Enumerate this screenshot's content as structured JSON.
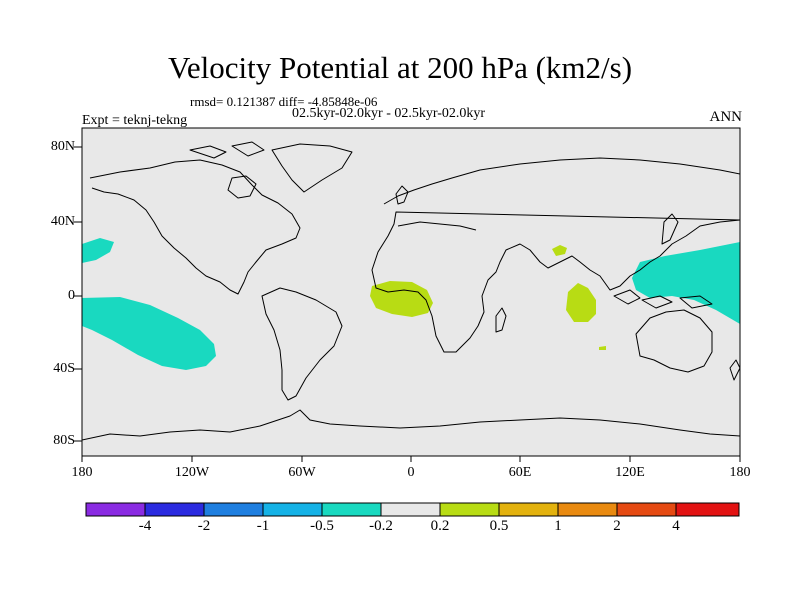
{
  "title": "Velocity Potential at 200 hPa (km2/s)",
  "stats": "rmsd= 0.121387 diff= -4.85848e-06",
  "subtitle": "02.5kyr-02.0kyr - 02.5kyr-02.0kyr",
  "expt": "Expt = teknj-tekng",
  "season": "ANN",
  "map": {
    "background": "#e8e8e8",
    "coast": "#000000",
    "y_ticks": [
      "80N",
      "40N",
      "0",
      "40S",
      "80S"
    ],
    "x_ticks": [
      "180",
      "120W",
      "60W",
      "0",
      "60E",
      "120E",
      "180"
    ]
  },
  "colorbar": {
    "colors": [
      "#8a2be2",
      "#2b2be0",
      "#1f7fe0",
      "#15b2e6",
      "#19d9c0",
      "#e8e8e8",
      "#b8dc14",
      "#e3b20e",
      "#e98a10",
      "#e54a12",
      "#e21212"
    ],
    "labels": [
      "-4",
      "-2",
      "-1",
      "-0.5",
      "-0.2",
      "0.2",
      "0.5",
      "1",
      "2",
      "4"
    ]
  },
  "anomaly_colors": {
    "negative": "#19d9c0",
    "positive": "#b8dc14"
  }
}
